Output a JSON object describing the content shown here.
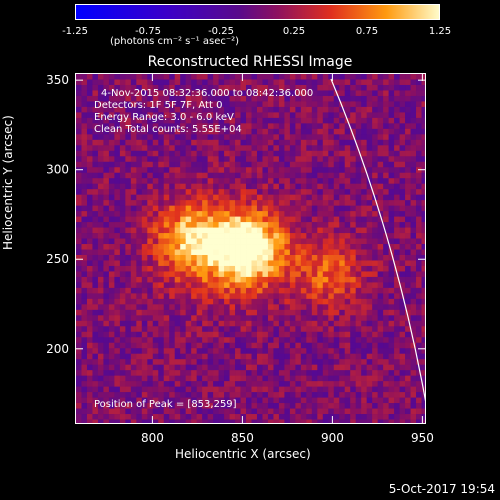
{
  "colorbar": {
    "tick_labels": [
      "-1.25",
      "-0.75",
      "-0.25",
      "0.25",
      "0.75",
      "1.25"
    ],
    "units": "(photons cm⁻² s⁻¹ asec⁻²)",
    "range": [
      -1.25,
      1.25
    ]
  },
  "chart_data": {
    "type": "heatmap",
    "title": "Reconstructed RHESSI Image",
    "xlabel": "Heliocentric X (arcsec)",
    "ylabel": "Heliocentric Y (arcsec)",
    "xlim": [
      757,
      952
    ],
    "ylim": [
      158,
      354
    ],
    "x_ticks": [
      800,
      850,
      900,
      950
    ],
    "y_ticks": [
      200,
      250,
      300,
      350
    ],
    "annotations": [
      "4-Nov-2015 08:32:36.000 to 08:42:36.000",
      "Detectors: 1F 5F 7F, Att 0",
      "Energy Range: 3.0 - 6.0 keV",
      "Clean     Total counts: 5.55E+04"
    ],
    "peak_label": "Position of Peak = [853,259]",
    "peak": [
      853,
      259
    ],
    "sources": [
      {
        "x": 853,
        "y": 256,
        "peak": 1.25
      },
      {
        "x": 822,
        "y": 262,
        "peak": 0.8
      },
      {
        "x": 898,
        "y": 243,
        "peak": 0.6
      }
    ],
    "background_level": 0.05,
    "limb_line": true,
    "grid": false
  },
  "footer": {
    "date": "5-Oct-2017 19:54"
  }
}
